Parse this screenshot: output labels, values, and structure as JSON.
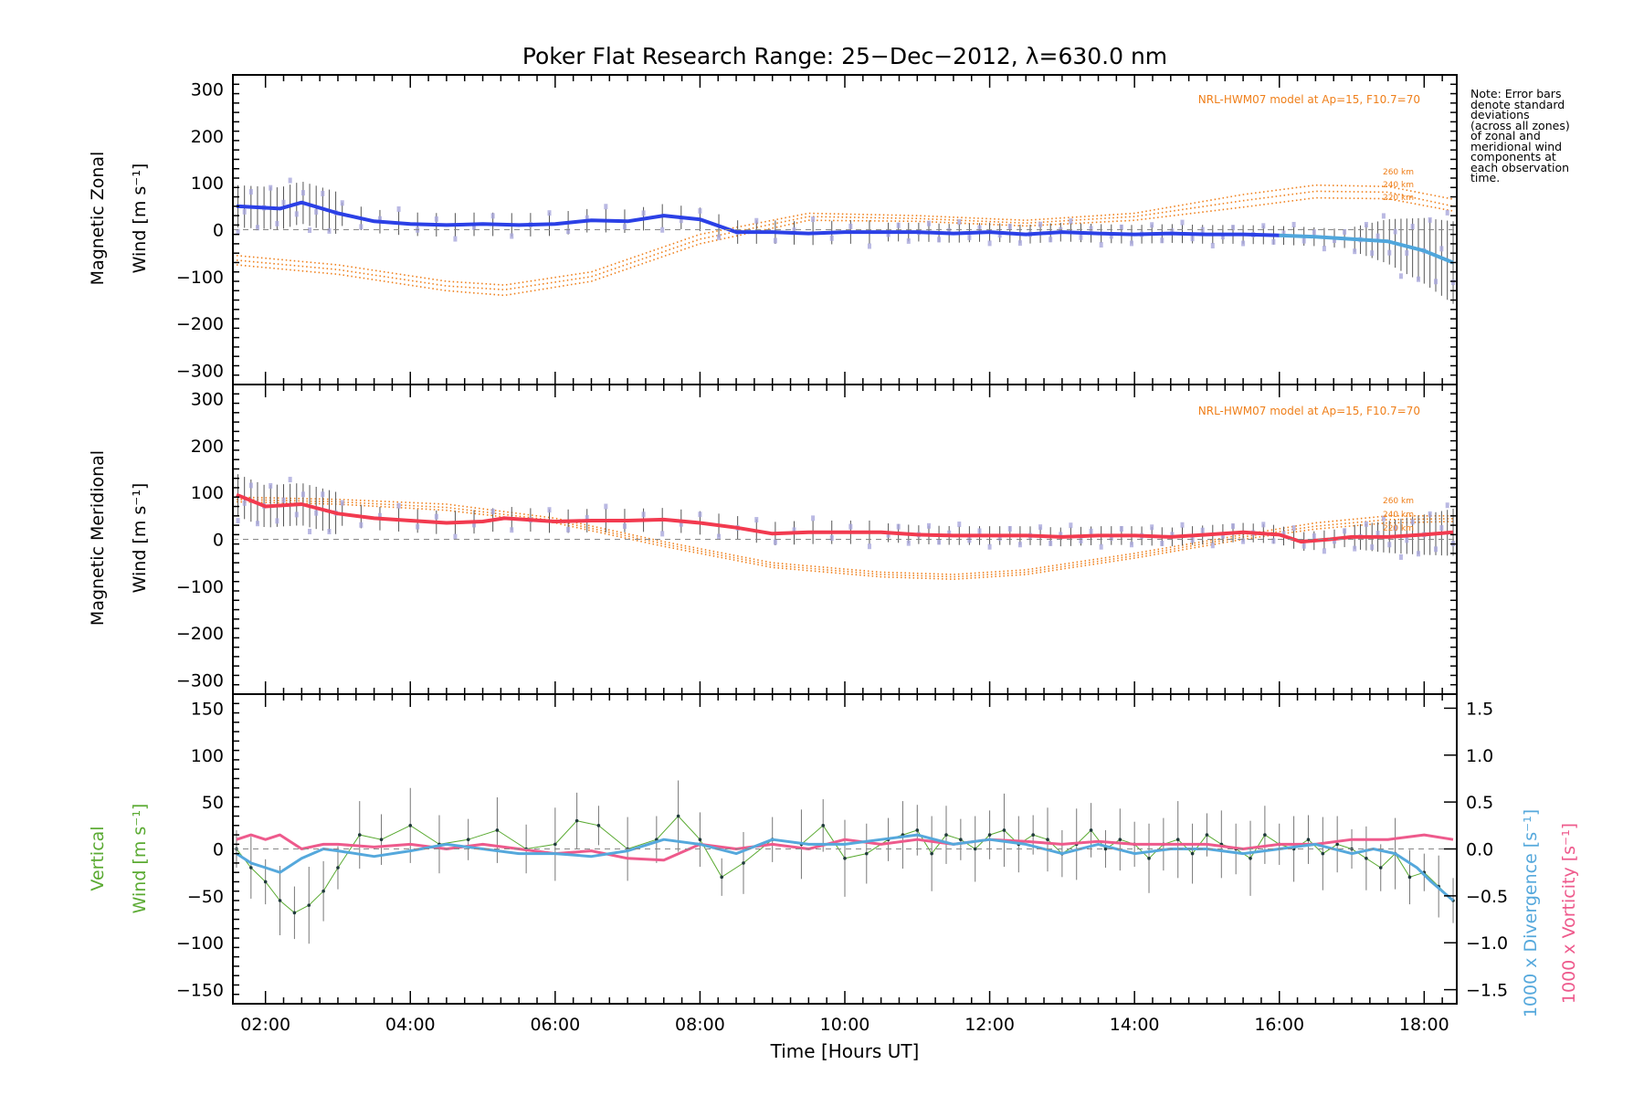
{
  "title": "Poker Flat Research Range: 25−Dec−2012, λ=630.0 nm",
  "xlabel": "Time [Hours UT]",
  "note_lines": [
    "Note: Error bars",
    "denote standard",
    "deviations",
    "(across all zones)",
    "of zonal and",
    "meridional wind",
    "components at",
    "each observation",
    "time."
  ],
  "colors": {
    "zonal": "#2b40e6",
    "zonal_late": "#4fa6dc",
    "meridional": "#f23a4f",
    "vertical": "#5aaa32",
    "divergence": "#55a8dc",
    "vorticity": "#ee5a8c",
    "model": "#ef7f1a",
    "samples": "#a9a7dc"
  },
  "chart_data": [
    {
      "type": "line",
      "panel": "zonal",
      "ylabel_lines": [
        "Magnetic Zonal",
        "Wind [m s⁻¹]"
      ],
      "ylim": [
        -330,
        330
      ],
      "yticks": [
        -300,
        -200,
        -100,
        0,
        100,
        200,
        300
      ],
      "ytick_labels": [
        "−300",
        "−200",
        "−100",
        "0",
        "100",
        "200",
        "300"
      ],
      "model_label": "NRL-HWM07 model at Ap=15, F10.7=70",
      "model_altitudes": [
        "260 km",
        "240 km",
        "220 km"
      ],
      "series": [
        {
          "x": [
            1.6,
            2.2,
            2.5,
            3.0,
            3.5,
            4.0,
            4.5,
            5.0,
            5.5,
            6.0,
            6.5,
            7.0,
            7.5,
            8.0,
            8.5,
            9.0,
            9.5,
            10.0,
            10.5,
            11.0,
            11.5,
            12.0,
            12.5,
            13.0,
            13.5,
            14.0,
            14.5,
            15.0,
            15.5,
            16.0,
            16.5,
            17.0,
            17.5,
            18.0,
            18.4
          ],
          "values": [
            50,
            45,
            58,
            35,
            18,
            12,
            10,
            12,
            10,
            12,
            20,
            18,
            30,
            22,
            -5,
            -5,
            -8,
            -5,
            -5,
            -5,
            -8,
            -5,
            -10,
            -5,
            -8,
            -10,
            -8,
            -10,
            -10,
            -12,
            -15,
            -20,
            -25,
            -45,
            -70
          ]
        }
      ],
      "model_curves": [
        {
          "x": [
            1.6,
            3.0,
            4.5,
            5.3,
            6.5,
            8.0,
            9.5,
            11.0,
            12.5,
            14.0,
            15.5,
            16.5,
            17.5,
            18.4
          ],
          "values": [
            -55,
            -75,
            -110,
            -118,
            -90,
            -10,
            35,
            30,
            20,
            35,
            75,
            95,
            92,
            65
          ]
        },
        {
          "x": [
            1.6,
            3.0,
            4.5,
            5.3,
            6.5,
            8.0,
            9.5,
            11.0,
            12.5,
            14.0,
            15.5,
            16.5,
            17.5,
            18.4
          ],
          "values": [
            -65,
            -85,
            -120,
            -128,
            -100,
            -20,
            28,
            24,
            14,
            28,
            62,
            82,
            80,
            50
          ]
        },
        {
          "x": [
            1.6,
            3.0,
            4.5,
            5.3,
            6.5,
            8.0,
            9.5,
            11.0,
            12.5,
            14.0,
            15.5,
            16.5,
            17.5,
            18.4
          ],
          "values": [
            -75,
            -95,
            -130,
            -140,
            -110,
            -30,
            20,
            18,
            8,
            20,
            48,
            68,
            66,
            40
          ]
        }
      ]
    },
    {
      "type": "line",
      "panel": "meridional",
      "ylabel_lines": [
        "Magnetic Meridional",
        "Wind [m s⁻¹]"
      ],
      "ylim": [
        -330,
        330
      ],
      "yticks": [
        -300,
        -200,
        -100,
        0,
        100,
        200,
        300
      ],
      "ytick_labels": [
        "−300",
        "−200",
        "−100",
        "0",
        "100",
        "200",
        "300"
      ],
      "model_label": "NRL-HWM07 model at Ap=15, F10.7=70",
      "model_altitudes": [
        "260 km",
        "240 km",
        "220 km"
      ],
      "series": [
        {
          "x": [
            1.6,
            2.0,
            2.5,
            3.0,
            3.5,
            4.0,
            4.5,
            5.0,
            5.3,
            6.0,
            6.5,
            7.0,
            7.5,
            8.0,
            8.5,
            9.0,
            9.5,
            10.0,
            10.5,
            11.0,
            11.5,
            12.0,
            12.5,
            13.0,
            13.5,
            14.0,
            14.5,
            15.0,
            15.5,
            16.0,
            16.3,
            16.7,
            17.0,
            17.5,
            18.0,
            18.4
          ],
          "values": [
            95,
            70,
            75,
            55,
            45,
            40,
            35,
            38,
            45,
            38,
            40,
            40,
            42,
            35,
            25,
            12,
            15,
            15,
            15,
            10,
            8,
            8,
            8,
            5,
            8,
            8,
            5,
            10,
            15,
            10,
            -5,
            0,
            5,
            5,
            10,
            15
          ]
        }
      ],
      "model_curves": [
        {
          "x": [
            1.6,
            3.0,
            4.5,
            6.0,
            7.5,
            9.0,
            10.5,
            11.5,
            12.5,
            14.0,
            15.5,
            16.5,
            17.5,
            18.4
          ],
          "values": [
            90,
            85,
            75,
            45,
            -5,
            -50,
            -70,
            -75,
            -65,
            -30,
            10,
            35,
            50,
            50
          ]
        },
        {
          "x": [
            1.6,
            3.0,
            4.5,
            6.0,
            7.5,
            9.0,
            10.5,
            11.5,
            12.5,
            14.0,
            15.5,
            16.5,
            17.5,
            18.4
          ],
          "values": [
            85,
            80,
            68,
            40,
            -10,
            -55,
            -75,
            -80,
            -70,
            -35,
            5,
            28,
            42,
            44
          ]
        },
        {
          "x": [
            1.6,
            3.0,
            4.5,
            6.0,
            7.5,
            9.0,
            10.5,
            11.5,
            12.5,
            14.0,
            15.5,
            16.5,
            17.5,
            18.4
          ],
          "values": [
            80,
            75,
            62,
            35,
            -15,
            -60,
            -80,
            -85,
            -75,
            -40,
            0,
            22,
            35,
            38
          ]
        }
      ]
    },
    {
      "type": "line",
      "panel": "vertical",
      "ylabel_lines": [
        "Vertical",
        "Wind [m s⁻¹]"
      ],
      "ylim": [
        -165,
        165
      ],
      "yticks": [
        -150,
        -100,
        -50,
        0,
        50,
        100,
        150
      ],
      "ytick_labels": [
        "−150",
        "−100",
        "−50",
        "0",
        "50",
        "100",
        "150"
      ],
      "y2label_divergence": "1000 x Divergence [s⁻¹]",
      "y2label_vorticity": "1000 x Vorticity [s⁻¹]",
      "y2lim": [
        -1.65,
        1.65
      ],
      "y2ticks": [
        -1.5,
        -1.0,
        -0.5,
        0.0,
        0.5,
        1.0,
        1.5
      ],
      "y2tick_labels": [
        "−1.5",
        "−1.0",
        "−0.5",
        "0.0",
        "0.5",
        "1.0",
        "1.5"
      ],
      "series": [
        {
          "name": "Vertical",
          "x": [
            1.6,
            1.8,
            2.0,
            2.2,
            2.4,
            2.6,
            2.8,
            3.0,
            3.3,
            3.6,
            4.0,
            4.4,
            4.8,
            5.2,
            5.6,
            6.0,
            6.3,
            6.6,
            7.0,
            7.4,
            7.7,
            8.0,
            8.3,
            8.6,
            9.0,
            9.4,
            9.7,
            10.0,
            10.3,
            10.6,
            10.8,
            11.0,
            11.2,
            11.4,
            11.6,
            11.8,
            12.0,
            12.2,
            12.4,
            12.6,
            12.8,
            13.0,
            13.2,
            13.4,
            13.6,
            13.8,
            14.0,
            14.2,
            14.4,
            14.6,
            14.8,
            15.0,
            15.2,
            15.4,
            15.6,
            15.8,
            16.0,
            16.2,
            16.4,
            16.6,
            16.8,
            17.0,
            17.2,
            17.4,
            17.6,
            17.8,
            18.0,
            18.2,
            18.4
          ],
          "values": [
            0,
            -20,
            -35,
            -55,
            -68,
            -60,
            -45,
            -20,
            15,
            10,
            25,
            5,
            10,
            20,
            0,
            5,
            30,
            25,
            0,
            10,
            35,
            10,
            -30,
            -15,
            10,
            5,
            25,
            -10,
            -5,
            10,
            15,
            20,
            -5,
            15,
            10,
            0,
            15,
            20,
            5,
            15,
            10,
            -5,
            5,
            20,
            0,
            10,
            5,
            -10,
            5,
            10,
            -5,
            15,
            5,
            0,
            -10,
            15,
            5,
            0,
            10,
            -5,
            5,
            0,
            -10,
            -20,
            -5,
            -30,
            -25,
            -40,
            -55
          ]
        },
        {
          "name": "Divergence",
          "x": [
            1.6,
            1.8,
            2.0,
            2.2,
            2.5,
            2.8,
            3.0,
            3.5,
            4.0,
            4.5,
            5.0,
            5.5,
            6.0,
            6.5,
            7.0,
            7.5,
            8.0,
            8.5,
            9.0,
            9.5,
            10.0,
            10.5,
            11.0,
            11.5,
            12.0,
            12.5,
            13.0,
            13.5,
            14.0,
            14.5,
            15.0,
            15.5,
            16.0,
            16.5,
            17.0,
            17.3,
            17.6,
            17.9,
            18.1,
            18.4
          ],
          "values": [
            -0.05,
            -0.15,
            -0.2,
            -0.25,
            -0.1,
            0.0,
            -0.02,
            -0.08,
            -0.02,
            0.05,
            0.0,
            -0.05,
            -0.05,
            -0.08,
            -0.02,
            0.1,
            0.05,
            -0.05,
            0.1,
            0.05,
            0.05,
            0.1,
            0.15,
            0.05,
            0.1,
            0.05,
            -0.05,
            0.05,
            -0.05,
            0.0,
            0.0,
            -0.05,
            0.0,
            0.05,
            -0.05,
            0.0,
            -0.05,
            -0.2,
            -0.35,
            -0.55
          ]
        },
        {
          "name": "Vorticity",
          "x": [
            1.6,
            1.8,
            2.0,
            2.2,
            2.5,
            2.8,
            3.0,
            3.5,
            4.0,
            4.5,
            5.0,
            5.5,
            6.0,
            6.5,
            7.0,
            7.5,
            8.0,
            8.5,
            9.0,
            9.5,
            10.0,
            10.5,
            11.0,
            11.5,
            12.0,
            12.5,
            13.0,
            13.5,
            14.0,
            14.5,
            15.0,
            15.5,
            16.0,
            16.5,
            17.0,
            17.5,
            18.0,
            18.4
          ],
          "values": [
            0.1,
            0.15,
            0.1,
            0.15,
            0.0,
            0.05,
            0.05,
            0.02,
            0.05,
            0.0,
            0.05,
            0.0,
            -0.05,
            -0.02,
            -0.1,
            -0.12,
            0.05,
            0.0,
            0.05,
            0.0,
            0.1,
            0.05,
            0.1,
            0.05,
            0.1,
            0.08,
            0.05,
            0.08,
            0.05,
            0.05,
            0.05,
            0.0,
            0.05,
            0.05,
            0.1,
            0.1,
            0.15,
            0.1
          ]
        }
      ]
    }
  ],
  "x_axis": {
    "xlim": [
      1.55,
      18.45
    ],
    "ticks": [
      2,
      4,
      6,
      8,
      10,
      12,
      14,
      16,
      18
    ],
    "tick_labels": [
      "02:00",
      "04:00",
      "06:00",
      "08:00",
      "10:00",
      "12:00",
      "14:00",
      "16:00",
      "18:00"
    ]
  }
}
